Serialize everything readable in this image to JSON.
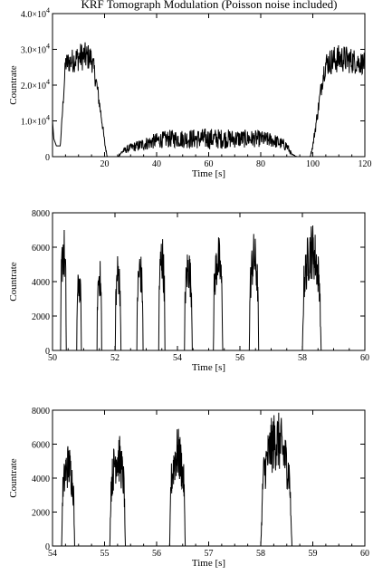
{
  "title": "KRF Tomograph Modulation (Poisson noise included)",
  "chart_data": [
    {
      "type": "line",
      "xlabel": "Time [s]",
      "ylabel": "Countrate",
      "xlim": [
        0,
        120
      ],
      "ylim": [
        0,
        40000
      ],
      "xticks": [
        20,
        40,
        60,
        80,
        100,
        120
      ],
      "xtick_labels": [
        "20",
        "40",
        "60",
        "80",
        "100",
        "120"
      ],
      "yticks": [
        0,
        10000,
        20000,
        30000,
        40000
      ],
      "ytick_labels": [
        {
          "base": "0",
          "exp": ""
        },
        {
          "base": "1.0×10",
          "exp": "4"
        },
        {
          "base": "2.0×10",
          "exp": "4"
        },
        {
          "base": "3.0×10",
          "exp": "4"
        },
        {
          "base": "4.0×10",
          "exp": "4"
        }
      ],
      "series_x": [
        0,
        0.5,
        1.5,
        3,
        5,
        8,
        11,
        13,
        15,
        16,
        17,
        18,
        19,
        20,
        21,
        22,
        23,
        24,
        25,
        27,
        30,
        35,
        40,
        45,
        50,
        55,
        60,
        65,
        70,
        75,
        80,
        85,
        90,
        92,
        94,
        95,
        96,
        97,
        98,
        99,
        100,
        101,
        102,
        103,
        104,
        105,
        108,
        111,
        114,
        117,
        120
      ],
      "series_y": [
        10000,
        5000,
        3000,
        3000,
        26000,
        27000,
        28000,
        28000,
        27500,
        24000,
        20000,
        15000,
        10000,
        4000,
        0,
        0,
        0,
        0,
        0,
        1500,
        2500,
        3500,
        4500,
        5000,
        5000,
        5000,
        5000,
        5000,
        5000,
        5000,
        5000,
        4500,
        3000,
        500,
        0,
        0,
        0,
        0,
        0,
        0,
        3000,
        8000,
        13000,
        18000,
        23000,
        26000,
        27000,
        27500,
        27000,
        26500,
        26000
      ],
      "noise": [
        0,
        0,
        0,
        0,
        3000,
        3500,
        4000,
        4000,
        3500,
        3000,
        2500,
        2000,
        1500,
        1000,
        0,
        0,
        0,
        0,
        0,
        800,
        1200,
        1800,
        2200,
        2500,
        2600,
        2800,
        3000,
        2800,
        2600,
        2500,
        2300,
        2000,
        1500,
        300,
        0,
        0,
        0,
        0,
        0,
        0,
        800,
        1500,
        2000,
        2500,
        3000,
        3500,
        4000,
        4000,
        3800,
        3500,
        3000
      ]
    },
    {
      "type": "line",
      "xlabel": "Time [s]",
      "ylabel": "Countrate",
      "xlim": [
        50,
        60
      ],
      "ylim": [
        0,
        8000
      ],
      "xticks": [
        50,
        52,
        54,
        56,
        58,
        60
      ],
      "xtick_labels": [
        "50",
        "52",
        "54",
        "56",
        "58",
        "60"
      ],
      "yticks": [
        0,
        2000,
        4000,
        6000,
        8000
      ],
      "ytick_labels": [
        "0",
        "2000",
        "4000",
        "6000",
        "8000"
      ],
      "peaks": [
        {
          "center": 50.35,
          "height": 7500,
          "width": 0.18
        },
        {
          "center": 50.85,
          "height": 5000,
          "width": 0.15
        },
        {
          "center": 51.5,
          "height": 5600,
          "width": 0.15
        },
        {
          "center": 52.1,
          "height": 5800,
          "width": 0.18
        },
        {
          "center": 52.8,
          "height": 6000,
          "width": 0.2
        },
        {
          "center": 53.5,
          "height": 7000,
          "width": 0.2
        },
        {
          "center": 54.35,
          "height": 6200,
          "width": 0.25
        },
        {
          "center": 55.3,
          "height": 6800,
          "width": 0.3
        },
        {
          "center": 56.45,
          "height": 6900,
          "width": 0.3
        },
        {
          "center": 58.3,
          "height": 7500,
          "width": 0.6
        }
      ]
    },
    {
      "type": "line",
      "xlabel": "Time [s]",
      "ylabel": "Countrate",
      "xlim": [
        54,
        60
      ],
      "ylim": [
        0,
        8000
      ],
      "xticks": [
        54,
        55,
        56,
        57,
        58,
        59,
        60
      ],
      "xtick_labels": [
        "54",
        "55",
        "56",
        "57",
        "58",
        "59",
        "60"
      ],
      "yticks": [
        0,
        2000,
        4000,
        6000,
        8000
      ],
      "ytick_labels": [
        "0",
        "2000",
        "4000",
        "6000",
        "8000"
      ],
      "peaks": [
        {
          "center": 54.3,
          "height": 6100,
          "width": 0.25
        },
        {
          "center": 55.25,
          "height": 6800,
          "width": 0.3
        },
        {
          "center": 56.4,
          "height": 7000,
          "width": 0.3
        },
        {
          "center": 58.3,
          "height": 8000,
          "width": 0.6
        }
      ]
    }
  ]
}
